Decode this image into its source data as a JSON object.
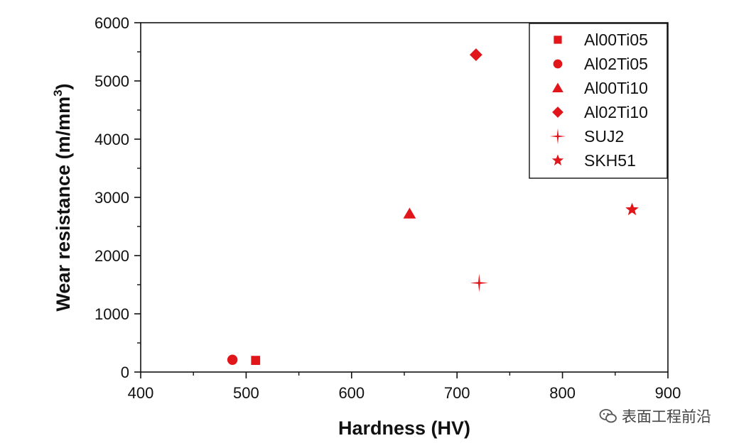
{
  "chart_data": {
    "type": "scatter",
    "xlabel": "Hardness (HV)",
    "ylabel": "Wear resistance (m/mm",
    "ylabel_sup": "3",
    "ylabel_end": ")",
    "xlim": [
      400,
      900
    ],
    "ylim": [
      0,
      6000
    ],
    "xticks": [
      "400",
      "500",
      "600",
      "700",
      "800",
      "900"
    ],
    "yticks": [
      "0",
      "1000",
      "2000",
      "3000",
      "4000",
      "5000",
      "6000"
    ],
    "grid": false,
    "legend_position": "top-right",
    "marker_color": "#e0161b",
    "series": [
      {
        "name": "Al00Ti05",
        "marker": "square",
        "x": 509,
        "y": 200
      },
      {
        "name": "Al02Ti05",
        "marker": "circle",
        "x": 487,
        "y": 210
      },
      {
        "name": "Al00Ti10",
        "marker": "triangle",
        "x": 655,
        "y": 2720
      },
      {
        "name": "Al02Ti10",
        "marker": "diamond",
        "x": 718,
        "y": 5450
      },
      {
        "name": "SUJ2",
        "marker": "cross-star",
        "x": 721,
        "y": 1530
      },
      {
        "name": "SKH51",
        "marker": "star",
        "x": 866,
        "y": 2790
      }
    ]
  },
  "watermark": {
    "text": "表面工程前沿",
    "icon": "wechat-icon"
  }
}
